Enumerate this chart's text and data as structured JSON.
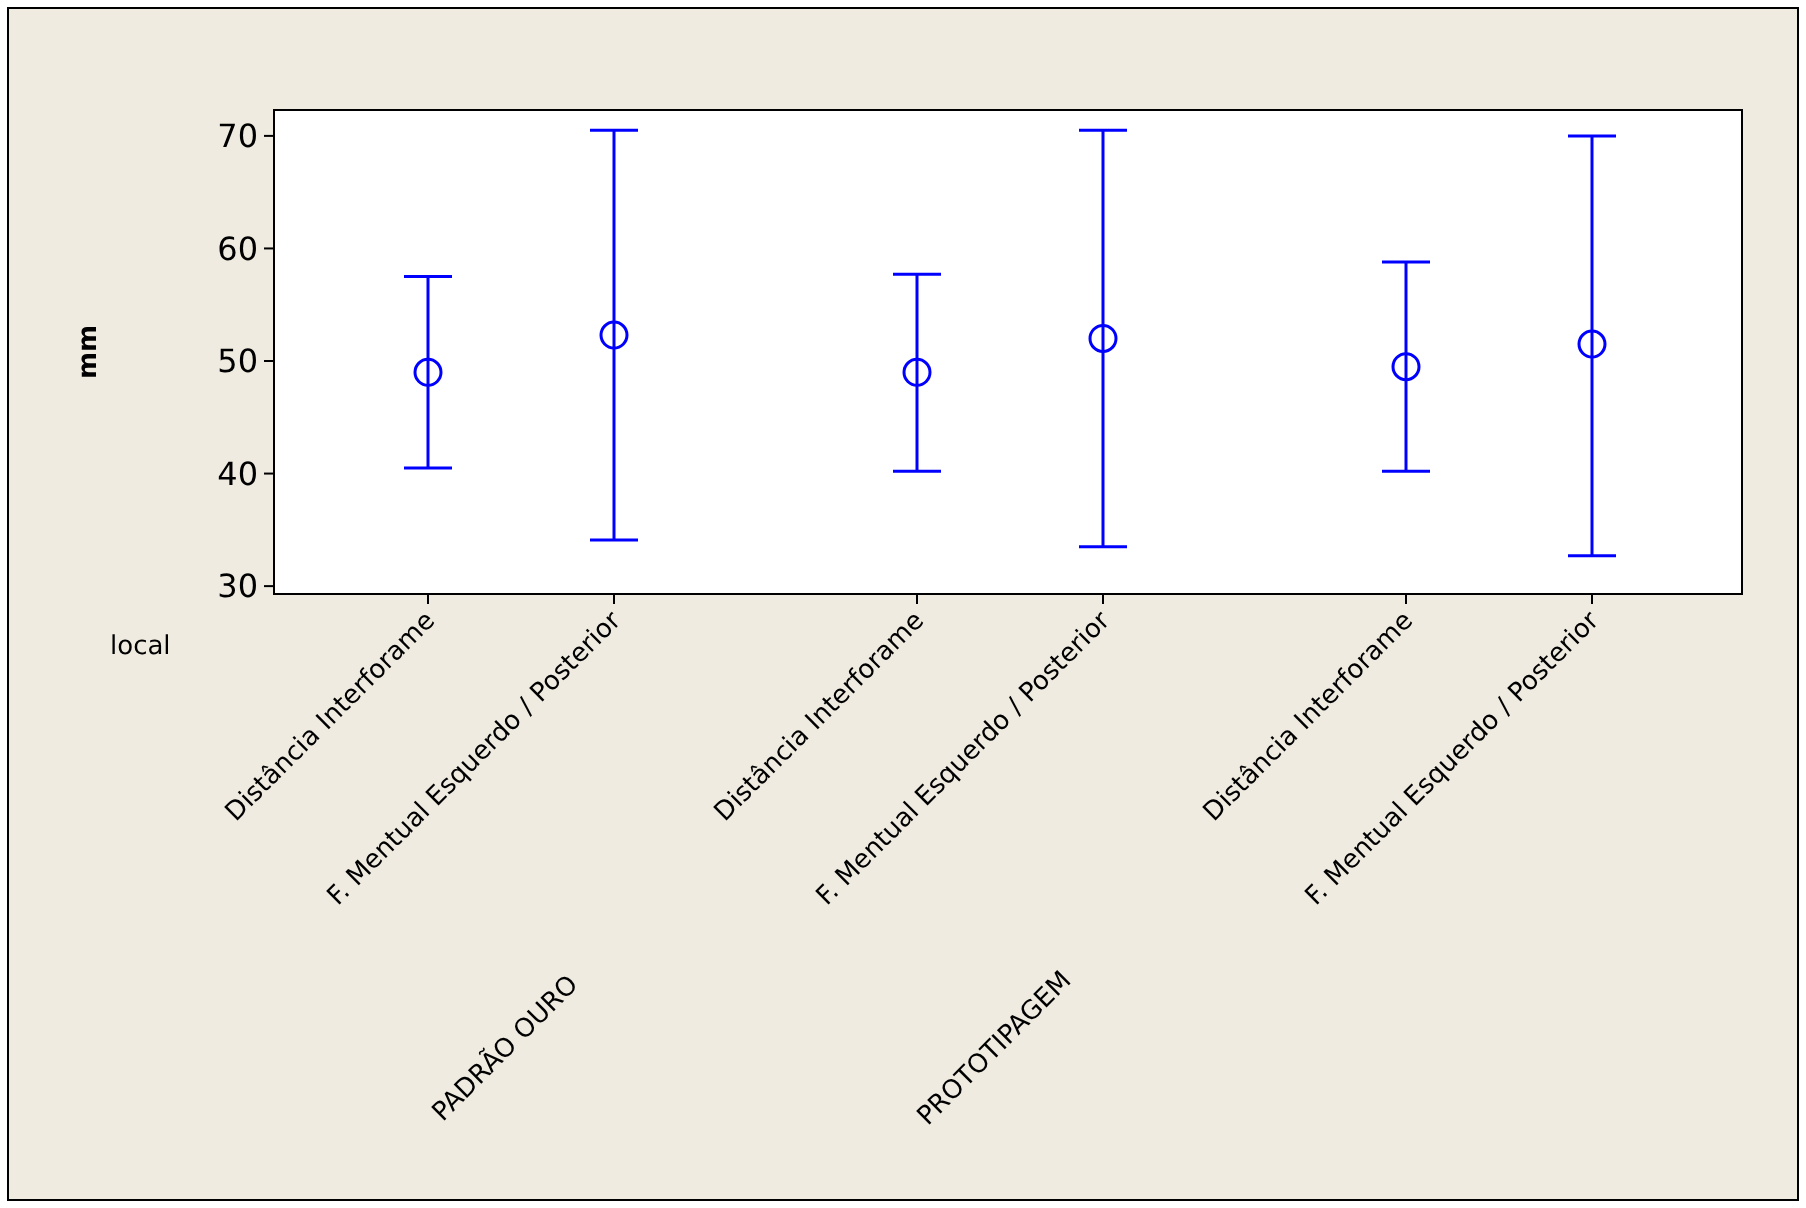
{
  "chart_data": {
    "type": "scatter",
    "xlabel": "local",
    "ylabel": "mm",
    "categories": [
      "Distância Interforame",
      "F. Mentual Esquerdo / Posterior",
      "Distância Interforame",
      "F. Mentual Esquerdo / Posterior",
      "Distância Interforame",
      "F. Mentual Esquerdo / Posterior"
    ],
    "values": [
      49.0,
      52.3,
      49.0,
      52.0,
      49.5,
      51.5
    ],
    "errors": [
      [
        40.5,
        57.5
      ],
      [
        34.1,
        70.5
      ],
      [
        40.2,
        57.7
      ],
      [
        33.5,
        70.5
      ],
      [
        40.2,
        58.8
      ],
      [
        32.7,
        70.0
      ]
    ],
    "color": "#0000ff",
    "marker": "circle",
    "ylim": [
      29.3,
      72.3
    ],
    "yticks": [
      30,
      40,
      50,
      60,
      70
    ],
    "annotations": [
      "PADRÃO OURO",
      "PROTOTIPAGEM"
    ]
  }
}
